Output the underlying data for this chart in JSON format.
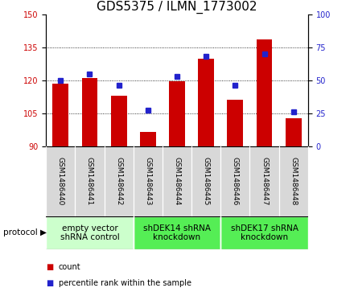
{
  "title": "GDS5375 / ILMN_1773002",
  "samples": [
    "GSM1486440",
    "GSM1486441",
    "GSM1486442",
    "GSM1486443",
    "GSM1486444",
    "GSM1486445",
    "GSM1486446",
    "GSM1486447",
    "GSM1486448"
  ],
  "counts": [
    118.5,
    121.0,
    113.0,
    96.5,
    119.5,
    130.0,
    111.0,
    138.5,
    102.5
  ],
  "percentiles": [
    50,
    55,
    46,
    27,
    53,
    68,
    46,
    70,
    26
  ],
  "ylim_left": [
    90,
    150
  ],
  "ylim_right": [
    0,
    100
  ],
  "yticks_left": [
    90,
    105,
    120,
    135,
    150
  ],
  "yticks_right": [
    0,
    25,
    50,
    75,
    100
  ],
  "bar_color": "#cc0000",
  "dot_color": "#2222cc",
  "groups": [
    {
      "label": "empty vector\nshRNA control",
      "start": 0,
      "end": 3,
      "color": "#ccffcc"
    },
    {
      "label": "shDEK14 shRNA\nknockdown",
      "start": 3,
      "end": 6,
      "color": "#55ee55"
    },
    {
      "label": "shDEK17 shRNA\nknockdown",
      "start": 6,
      "end": 9,
      "color": "#55ee55"
    }
  ],
  "legend_count_label": "count",
  "legend_pct_label": "percentile rank within the sample",
  "protocol_label": "protocol",
  "bar_width": 0.55,
  "title_fontsize": 11,
  "tick_fontsize": 7,
  "sample_fontsize": 6.5,
  "group_fontsize": 7.5
}
